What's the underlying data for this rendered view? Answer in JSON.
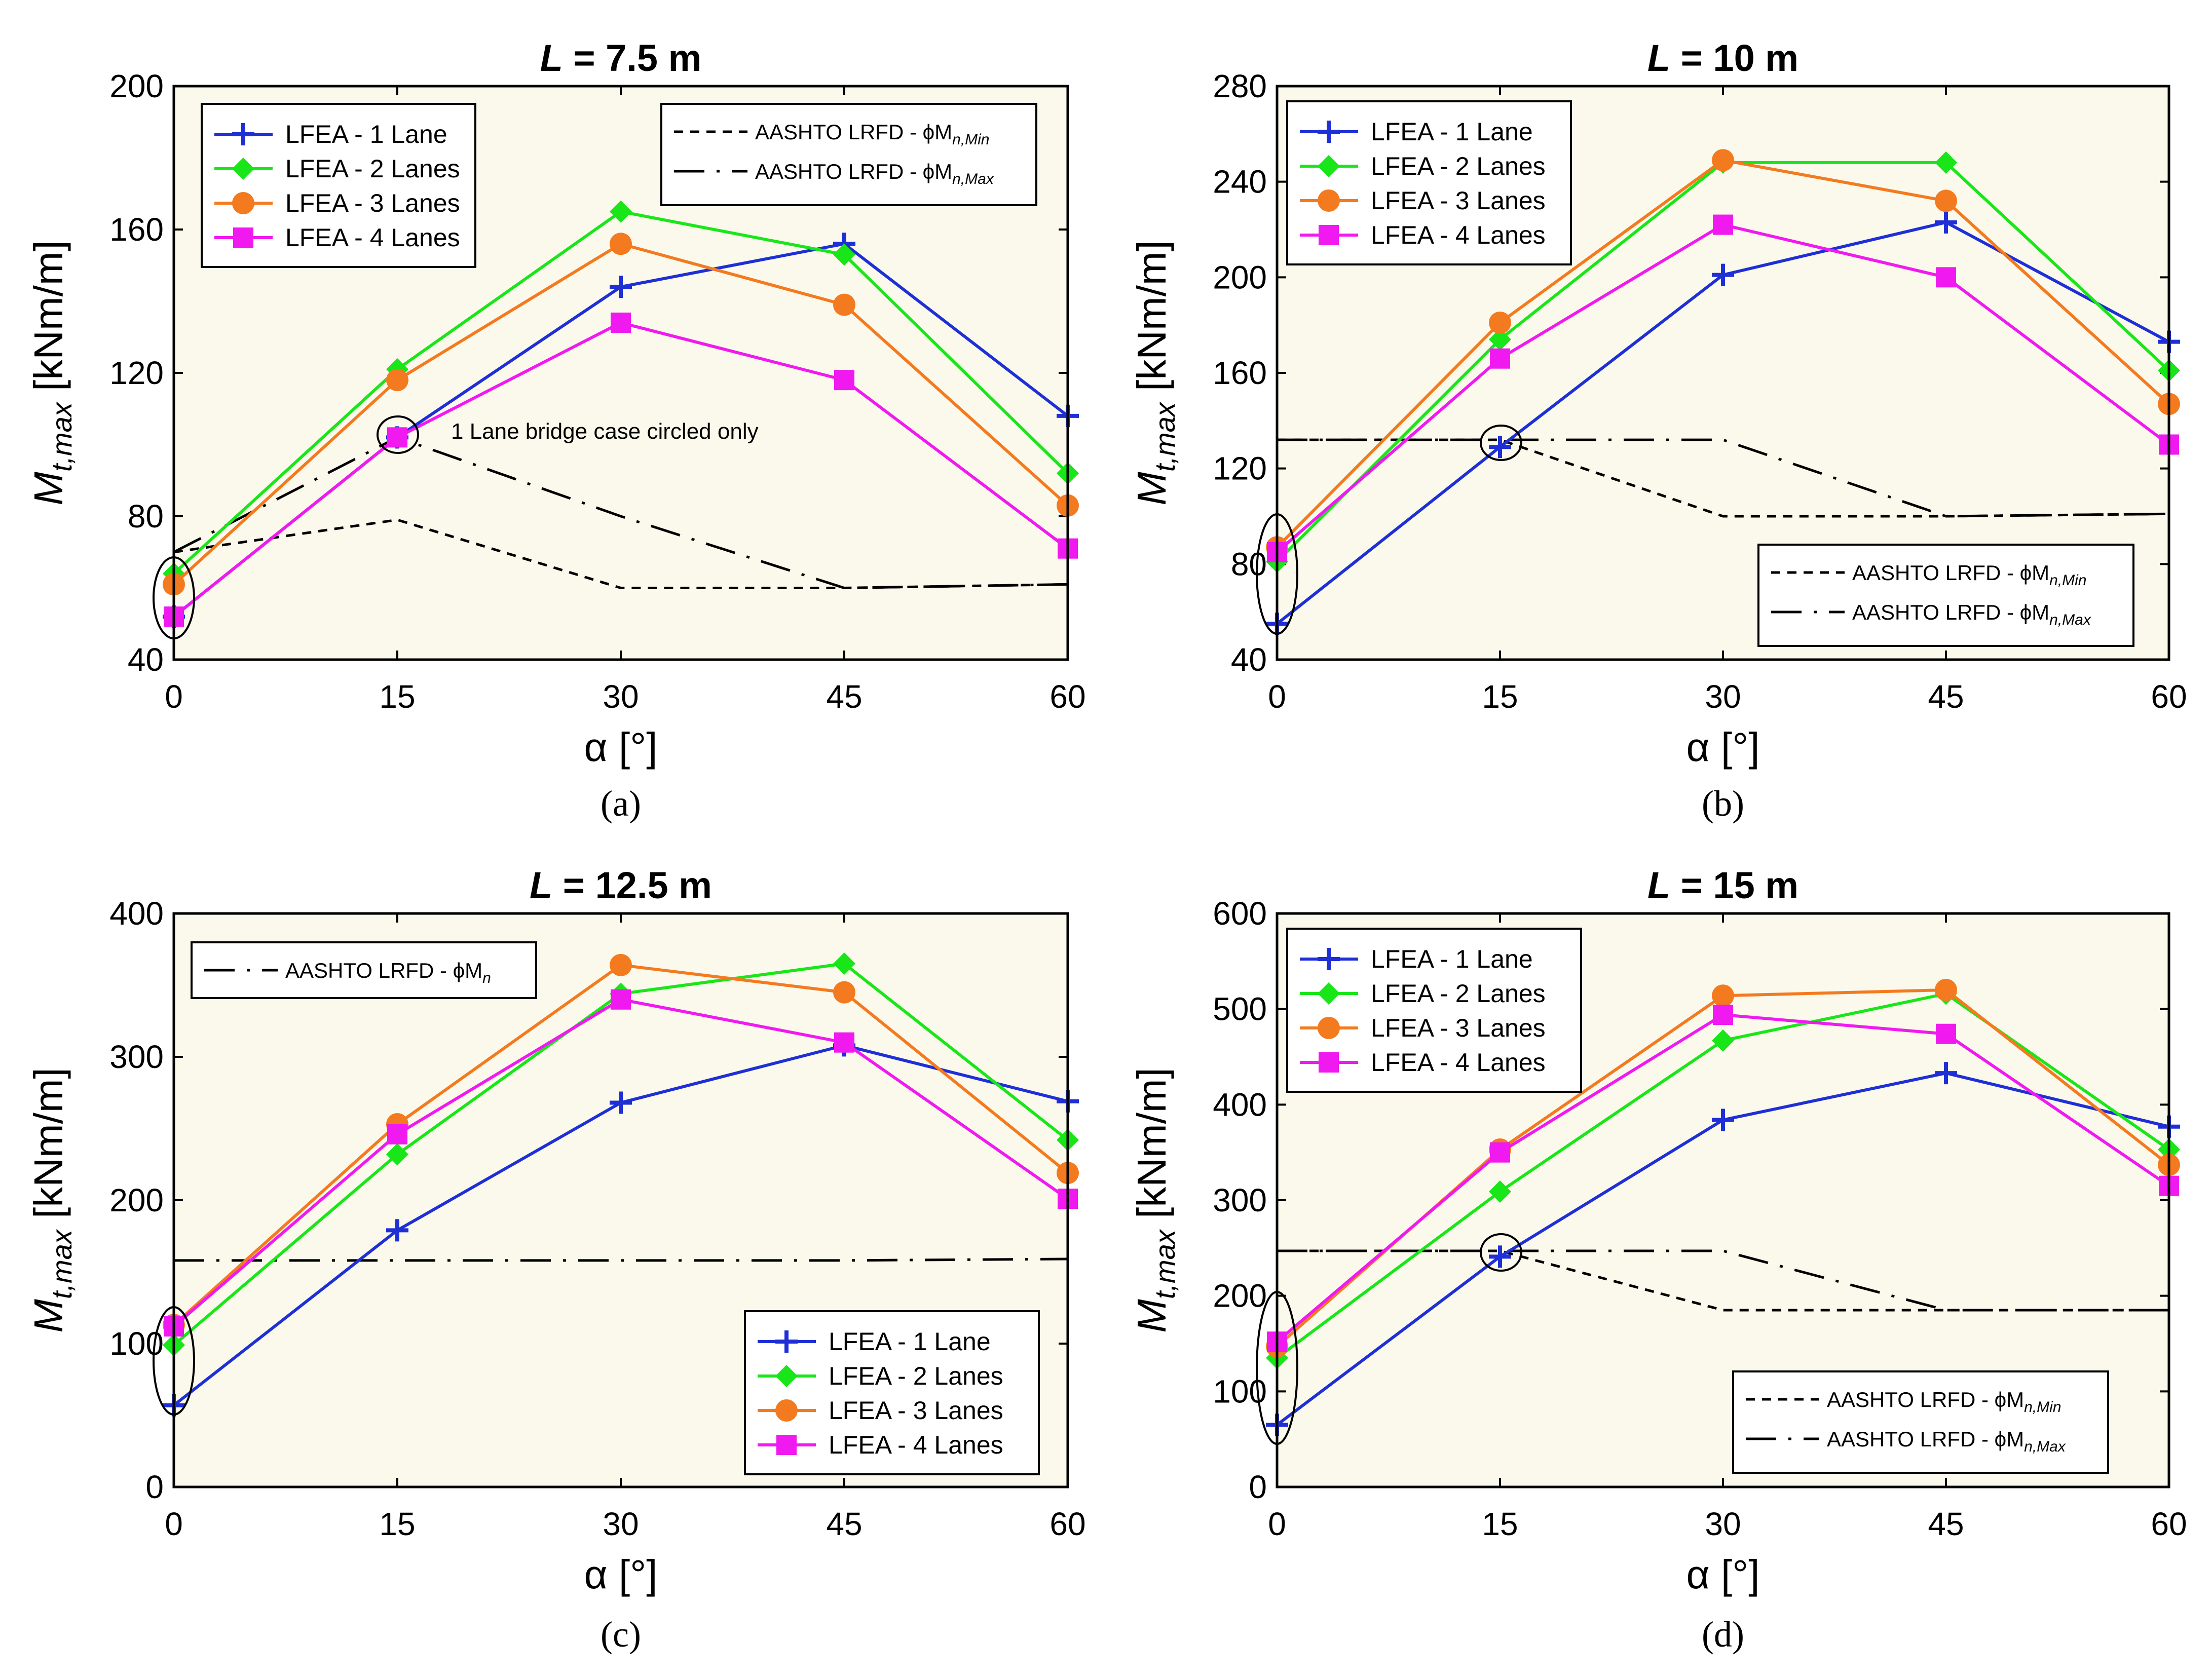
{
  "figure": {
    "panel_labels": [
      "(a)",
      "(b)",
      "(c)",
      "(d)"
    ]
  },
  "chart_data": [
    {
      "type": "line",
      "title_prefix": "L",
      "title_suffix": " = 7.5 m",
      "xlabel": "α [°]",
      "ylabel_main": "M",
      "ylabel_sub": "t,max",
      "ylabel_unit": " [kNm/m]",
      "x": [
        0,
        15,
        30,
        45,
        60
      ],
      "xlim": [
        0,
        60
      ],
      "ylim": [
        40,
        200
      ],
      "yticks": [
        40,
        80,
        120,
        160,
        200
      ],
      "series": [
        {
          "name": "LFEA - 1 Lane",
          "color": "#1f2fd6",
          "marker": "plus",
          "values": [
            52,
            102,
            144,
            156,
            108
          ]
        },
        {
          "name": "LFEA - 2 Lanes",
          "color": "#19e619",
          "marker": "diamond",
          "values": [
            64,
            121,
            165,
            153,
            92
          ]
        },
        {
          "name": "LFEA - 3 Lanes",
          "color": "#f47a1f",
          "marker": "circle",
          "values": [
            61,
            118,
            156,
            139,
            83
          ]
        },
        {
          "name": "LFEA - 4 Lanes",
          "color": "#f019f0",
          "marker": "square",
          "values": [
            52,
            102,
            134,
            118,
            71
          ]
        }
      ],
      "code_lines": [
        {
          "name": "AASHTO LRFD - ϕM",
          "sub": "n,Min",
          "dash": "18,14",
          "values": [
            70,
            79,
            60,
            60,
            61
          ]
        },
        {
          "name": "AASHTO LRFD - ϕM",
          "sub": "n,Max",
          "dash": "60,24,6,24",
          "values": [
            70,
            102,
            80,
            60,
            61
          ]
        }
      ],
      "annotation": "1 Lane bridge case circled only"
    },
    {
      "type": "line",
      "title_prefix": "L",
      "title_suffix": " = 10 m",
      "xlabel": "α [°]",
      "ylabel_main": "M",
      "ylabel_sub": "t,max",
      "ylabel_unit": " [kNm/m]",
      "x": [
        0,
        15,
        30,
        45,
        60
      ],
      "xlim": [
        0,
        60
      ],
      "ylim": [
        40,
        280
      ],
      "yticks": [
        40,
        80,
        120,
        160,
        200,
        240,
        280
      ],
      "series": [
        {
          "name": "LFEA - 1 Lane",
          "color": "#1f2fd6",
          "marker": "plus",
          "values": [
            55,
            129,
            201,
            223,
            173
          ]
        },
        {
          "name": "LFEA - 2 Lanes",
          "color": "#19e619",
          "marker": "diamond",
          "values": [
            81,
            174,
            248,
            248,
            161
          ]
        },
        {
          "name": "LFEA - 3 Lanes",
          "color": "#f47a1f",
          "marker": "circle",
          "values": [
            87,
            181,
            249,
            232,
            147
          ]
        },
        {
          "name": "LFEA - 4 Lanes",
          "color": "#f019f0",
          "marker": "square",
          "values": [
            85,
            166,
            222,
            200,
            130
          ]
        }
      ],
      "code_lines": [
        {
          "name": "AASHTO LRFD - ϕM",
          "sub": "n,Min",
          "dash": "18,14",
          "values": [
            132,
            132,
            100,
            100,
            101
          ]
        },
        {
          "name": "AASHTO LRFD - ϕM",
          "sub": "n,Max",
          "dash": "60,24,6,24",
          "values": [
            132,
            132,
            132,
            100,
            101
          ]
        }
      ]
    },
    {
      "type": "line",
      "title_prefix": "L",
      "title_suffix": " = 12.5 m",
      "xlabel": "α [°]",
      "ylabel_main": "M",
      "ylabel_sub": "t,max",
      "ylabel_unit": " [kNm/m]",
      "x": [
        0,
        15,
        30,
        45,
        60
      ],
      "xlim": [
        0,
        60
      ],
      "ylim": [
        0,
        400
      ],
      "yticks": [
        0,
        100,
        200,
        300,
        400
      ],
      "series": [
        {
          "name": "LFEA - 1 Lane",
          "color": "#1f2fd6",
          "marker": "plus",
          "values": [
            57,
            179,
            268,
            308,
            269
          ]
        },
        {
          "name": "LFEA - 2 Lanes",
          "color": "#19e619",
          "marker": "diamond",
          "values": [
            99,
            232,
            344,
            365,
            242
          ]
        },
        {
          "name": "LFEA - 3 Lanes",
          "color": "#f47a1f",
          "marker": "circle",
          "values": [
            113,
            253,
            364,
            345,
            219
          ]
        },
        {
          "name": "LFEA - 4 Lanes",
          "color": "#f019f0",
          "marker": "square",
          "values": [
            112,
            246,
            340,
            310,
            201
          ]
        }
      ],
      "code_lines": [
        {
          "name": "AASHTO LRFD - ϕM",
          "sub": "n",
          "dash": "60,24,6,24",
          "values": [
            158,
            158,
            158,
            158,
            159
          ]
        }
      ]
    },
    {
      "type": "line",
      "title_prefix": "L",
      "title_suffix": " = 15 m",
      "xlabel": "α [°]",
      "ylabel_main": "M",
      "ylabel_sub": "t,max",
      "ylabel_unit": " [kNm/m]",
      "x": [
        0,
        15,
        30,
        45,
        60
      ],
      "xlim": [
        0,
        60
      ],
      "ylim": [
        0,
        600
      ],
      "yticks": [
        0,
        100,
        200,
        300,
        400,
        500,
        600
      ],
      "series": [
        {
          "name": "LFEA - 1 Lane",
          "color": "#1f2fd6",
          "marker": "plus",
          "values": [
            65,
            241,
            384,
            433,
            377
          ]
        },
        {
          "name": "LFEA - 2 Lanes",
          "color": "#19e619",
          "marker": "diamond",
          "values": [
            135,
            309,
            467,
            516,
            353
          ]
        },
        {
          "name": "LFEA - 3 Lanes",
          "color": "#f47a1f",
          "marker": "circle",
          "values": [
            147,
            353,
            514,
            520,
            337
          ]
        },
        {
          "name": "LFEA - 4 Lanes",
          "color": "#f019f0",
          "marker": "square",
          "values": [
            152,
            350,
            494,
            474,
            315
          ]
        }
      ],
      "code_lines": [
        {
          "name": "AASHTO LRFD - ϕM",
          "sub": "n,Min",
          "dash": "18,14",
          "values": [
            247,
            247,
            185,
            185,
            185
          ]
        },
        {
          "name": "AASHTO LRFD - ϕM",
          "sub": "n,Max",
          "dash": "60,24,6,24",
          "values": [
            247,
            247,
            247,
            185,
            185
          ]
        }
      ]
    }
  ]
}
